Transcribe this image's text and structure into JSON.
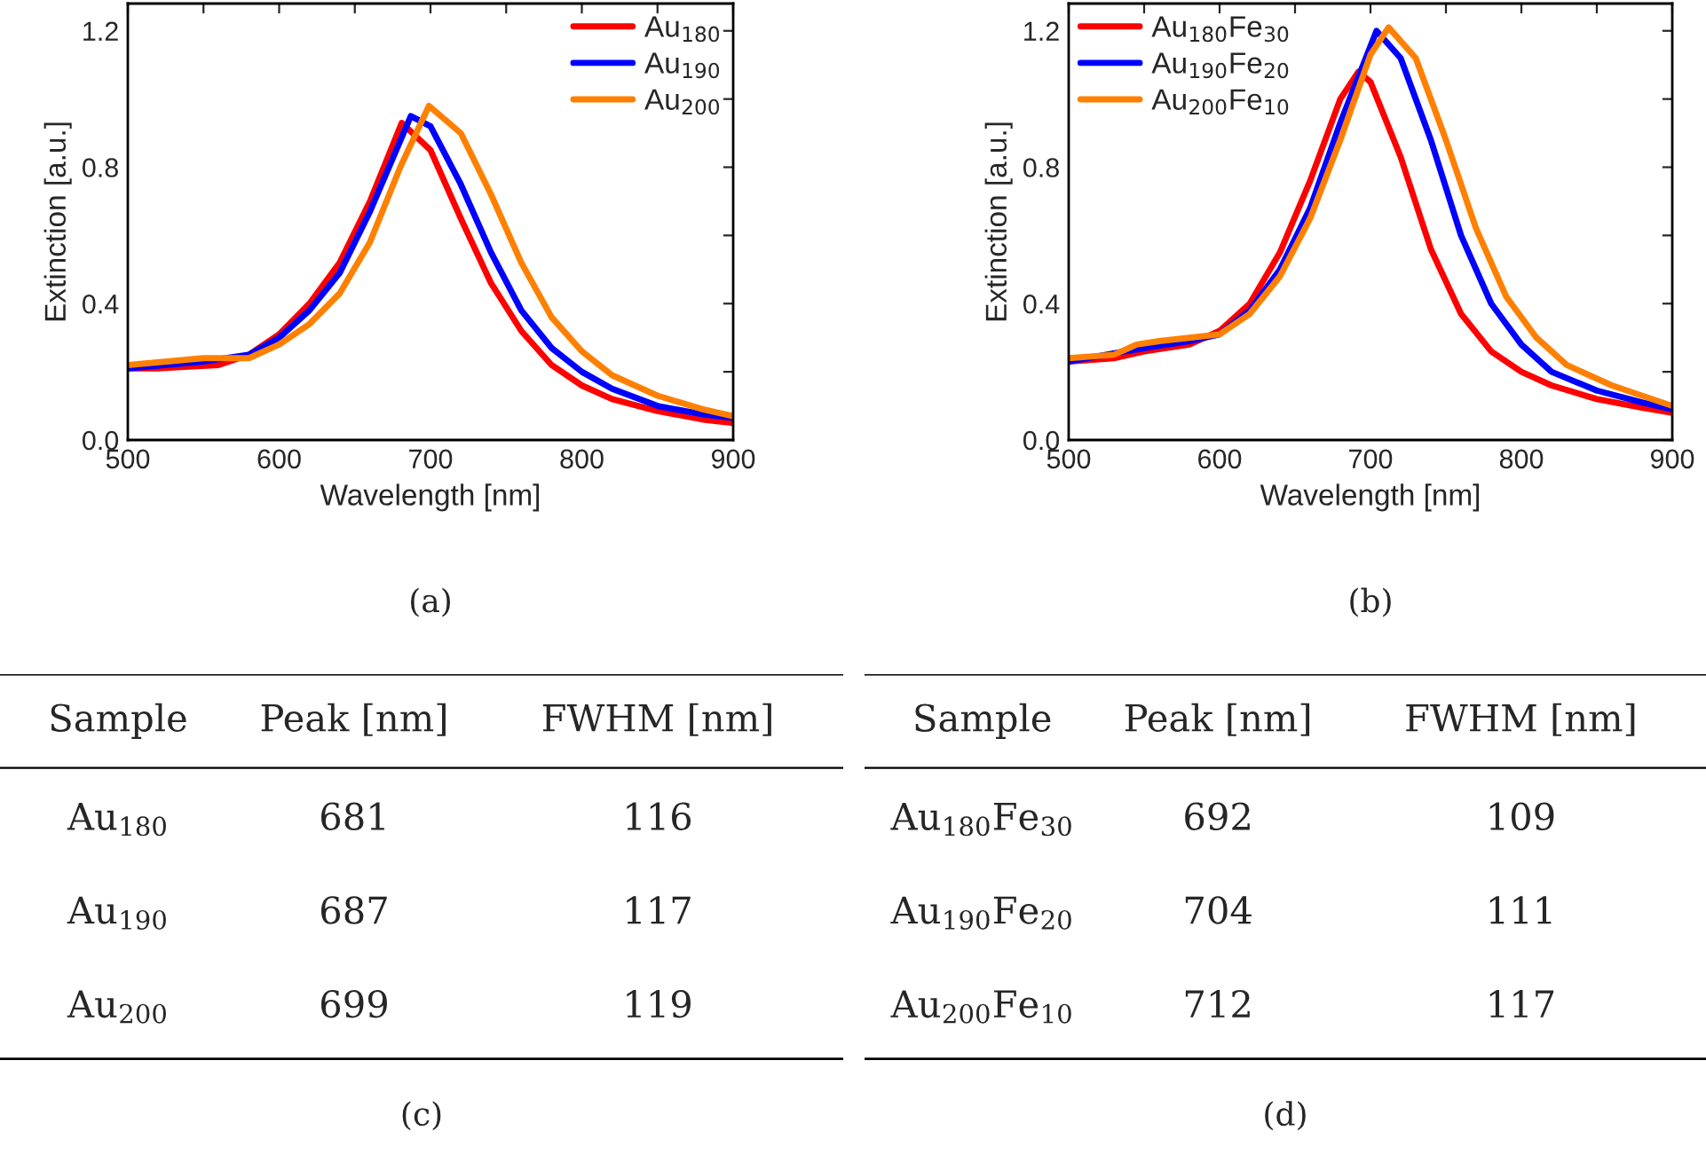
{
  "chart_data": [
    {
      "type": "line",
      "xlabel": "Wavelength [nm]",
      "ylabel": "Extinction [a.u.]",
      "xlim": [
        500,
        900
      ],
      "ylim": [
        0,
        1.28
      ],
      "xticks": [
        500,
        {
          "value": 550,
          "label": null
        },
        600,
        {
          "value": 650,
          "label": null
        },
        700,
        {
          "value": 750,
          "label": null
        },
        800,
        {
          "value": 850,
          "label": null
        },
        900
      ],
      "yticks": [
        {
          "value": 0,
          "label": "0.0"
        },
        {
          "value": 0.2,
          "label": null
        },
        {
          "value": 0.4,
          "label": "0.4"
        },
        {
          "value": 0.6,
          "label": null
        },
        {
          "value": 0.8,
          "label": "0.8"
        },
        {
          "value": 1.0,
          "label": null
        },
        {
          "value": 1.2,
          "label": "1.2"
        }
      ],
      "legend": "top right",
      "grid": false,
      "line_style": "solid",
      "series": [
        {
          "name": "Au$_{180}$",
          "color": "#ff0000",
          "x": [
            500,
            520,
            540,
            560,
            580,
            600,
            620,
            640,
            660,
            681,
            700,
            720,
            740,
            760,
            780,
            800,
            820,
            850,
            880,
            900
          ],
          "values": [
            0.21,
            0.21,
            0.215,
            0.22,
            0.25,
            0.31,
            0.4,
            0.52,
            0.7,
            0.93,
            0.85,
            0.65,
            0.46,
            0.32,
            0.22,
            0.16,
            0.12,
            0.085,
            0.06,
            0.05
          ]
        },
        {
          "name": "Au$_{190}$",
          "color": "#0000ff",
          "x": [
            500,
            550,
            580,
            600,
            620,
            640,
            660,
            687,
            700,
            720,
            740,
            760,
            780,
            800,
            820,
            850,
            880,
            900
          ],
          "values": [
            0.21,
            0.23,
            0.25,
            0.3,
            0.38,
            0.49,
            0.67,
            0.95,
            0.92,
            0.75,
            0.55,
            0.38,
            0.27,
            0.2,
            0.15,
            0.1,
            0.075,
            0.065
          ]
        },
        {
          "name": "Au$_{200}$",
          "color": "#ff8000",
          "x": [
            500,
            550,
            580,
            600,
            620,
            640,
            660,
            680,
            699,
            720,
            740,
            760,
            780,
            800,
            820,
            850,
            880,
            900
          ],
          "values": [
            0.22,
            0.24,
            0.24,
            0.28,
            0.34,
            0.43,
            0.58,
            0.8,
            0.98,
            0.9,
            0.72,
            0.52,
            0.36,
            0.26,
            0.19,
            0.13,
            0.09,
            0.07
          ]
        }
      ],
      "annotations": [
        "(a)"
      ]
    },
    {
      "type": "line",
      "xlabel": "Wavelength [nm]",
      "ylabel": "Extinction [a.u.]",
      "xlim": [
        500,
        900
      ],
      "ylim": [
        0,
        1.28
      ],
      "xticks": [
        500,
        {
          "value": 550,
          "label": null
        },
        600,
        {
          "value": 650,
          "label": null
        },
        700,
        {
          "value": 750,
          "label": null
        },
        800,
        {
          "value": 850,
          "label": null
        },
        900
      ],
      "yticks": [
        {
          "value": 0,
          "label": "0.0"
        },
        {
          "value": 0.2,
          "label": null
        },
        {
          "value": 0.4,
          "label": "0.4"
        },
        {
          "value": 0.6,
          "label": null
        },
        {
          "value": 0.8,
          "label": "0.8"
        },
        {
          "value": 1.0,
          "label": null
        },
        {
          "value": 1.2,
          "label": "1.2"
        }
      ],
      "legend": "top left",
      "grid": false,
      "line_style": "solid",
      "series": [
        {
          "name": "Au$_{180}$Fe$_{30}$",
          "color": "#ff0000",
          "x": [
            500,
            530,
            550,
            580,
            600,
            620,
            640,
            660,
            680,
            692,
            700,
            720,
            740,
            760,
            780,
            800,
            820,
            850,
            880,
            900
          ],
          "values": [
            0.23,
            0.24,
            0.26,
            0.28,
            0.32,
            0.4,
            0.55,
            0.76,
            1.0,
            1.08,
            1.05,
            0.83,
            0.56,
            0.37,
            0.26,
            0.2,
            0.16,
            0.12,
            0.095,
            0.08
          ]
        },
        {
          "name": "Au$_{190}$Fe$_{20}$",
          "color": "#0000ff",
          "x": [
            500,
            550,
            580,
            600,
            620,
            640,
            660,
            680,
            704,
            720,
            740,
            760,
            780,
            800,
            820,
            850,
            880,
            900
          ],
          "values": [
            0.23,
            0.27,
            0.29,
            0.31,
            0.38,
            0.5,
            0.68,
            0.93,
            1.2,
            1.12,
            0.88,
            0.6,
            0.4,
            0.28,
            0.2,
            0.145,
            0.11,
            0.09
          ]
        },
        {
          "name": "Au$_{200}$Fe$_{10}$",
          "color": "#ff8000",
          "x": [
            500,
            530,
            545,
            560,
            580,
            600,
            620,
            640,
            660,
            680,
            700,
            712,
            730,
            750,
            770,
            790,
            810,
            830,
            860,
            900
          ],
          "values": [
            0.24,
            0.25,
            0.28,
            0.29,
            0.3,
            0.31,
            0.37,
            0.48,
            0.65,
            0.88,
            1.13,
            1.21,
            1.12,
            0.88,
            0.62,
            0.42,
            0.3,
            0.22,
            0.16,
            0.1
          ]
        }
      ],
      "annotations": [
        "(b)"
      ]
    },
    {
      "type": "other",
      "annotations": [
        "Sample",
        "Peak [nm]",
        "FWHM [nm]",
        "Au$_{180}$",
        "681",
        "116",
        "Au$_{190}$",
        "687",
        "117",
        "Au$_{200}$",
        "699",
        "119",
        "(c)"
      ]
    },
    {
      "type": "other",
      "annotations": [
        "Sample",
        "Peak [nm]",
        "FWHM [nm]",
        "Au$_{180}$Fe$_{30}$",
        "692",
        "109",
        "Au$_{190}$Fe$_{20}$",
        "704",
        "111",
        "Au$_{200}$Fe$_{10}$",
        "712",
        "117",
        "(d)"
      ]
    }
  ]
}
